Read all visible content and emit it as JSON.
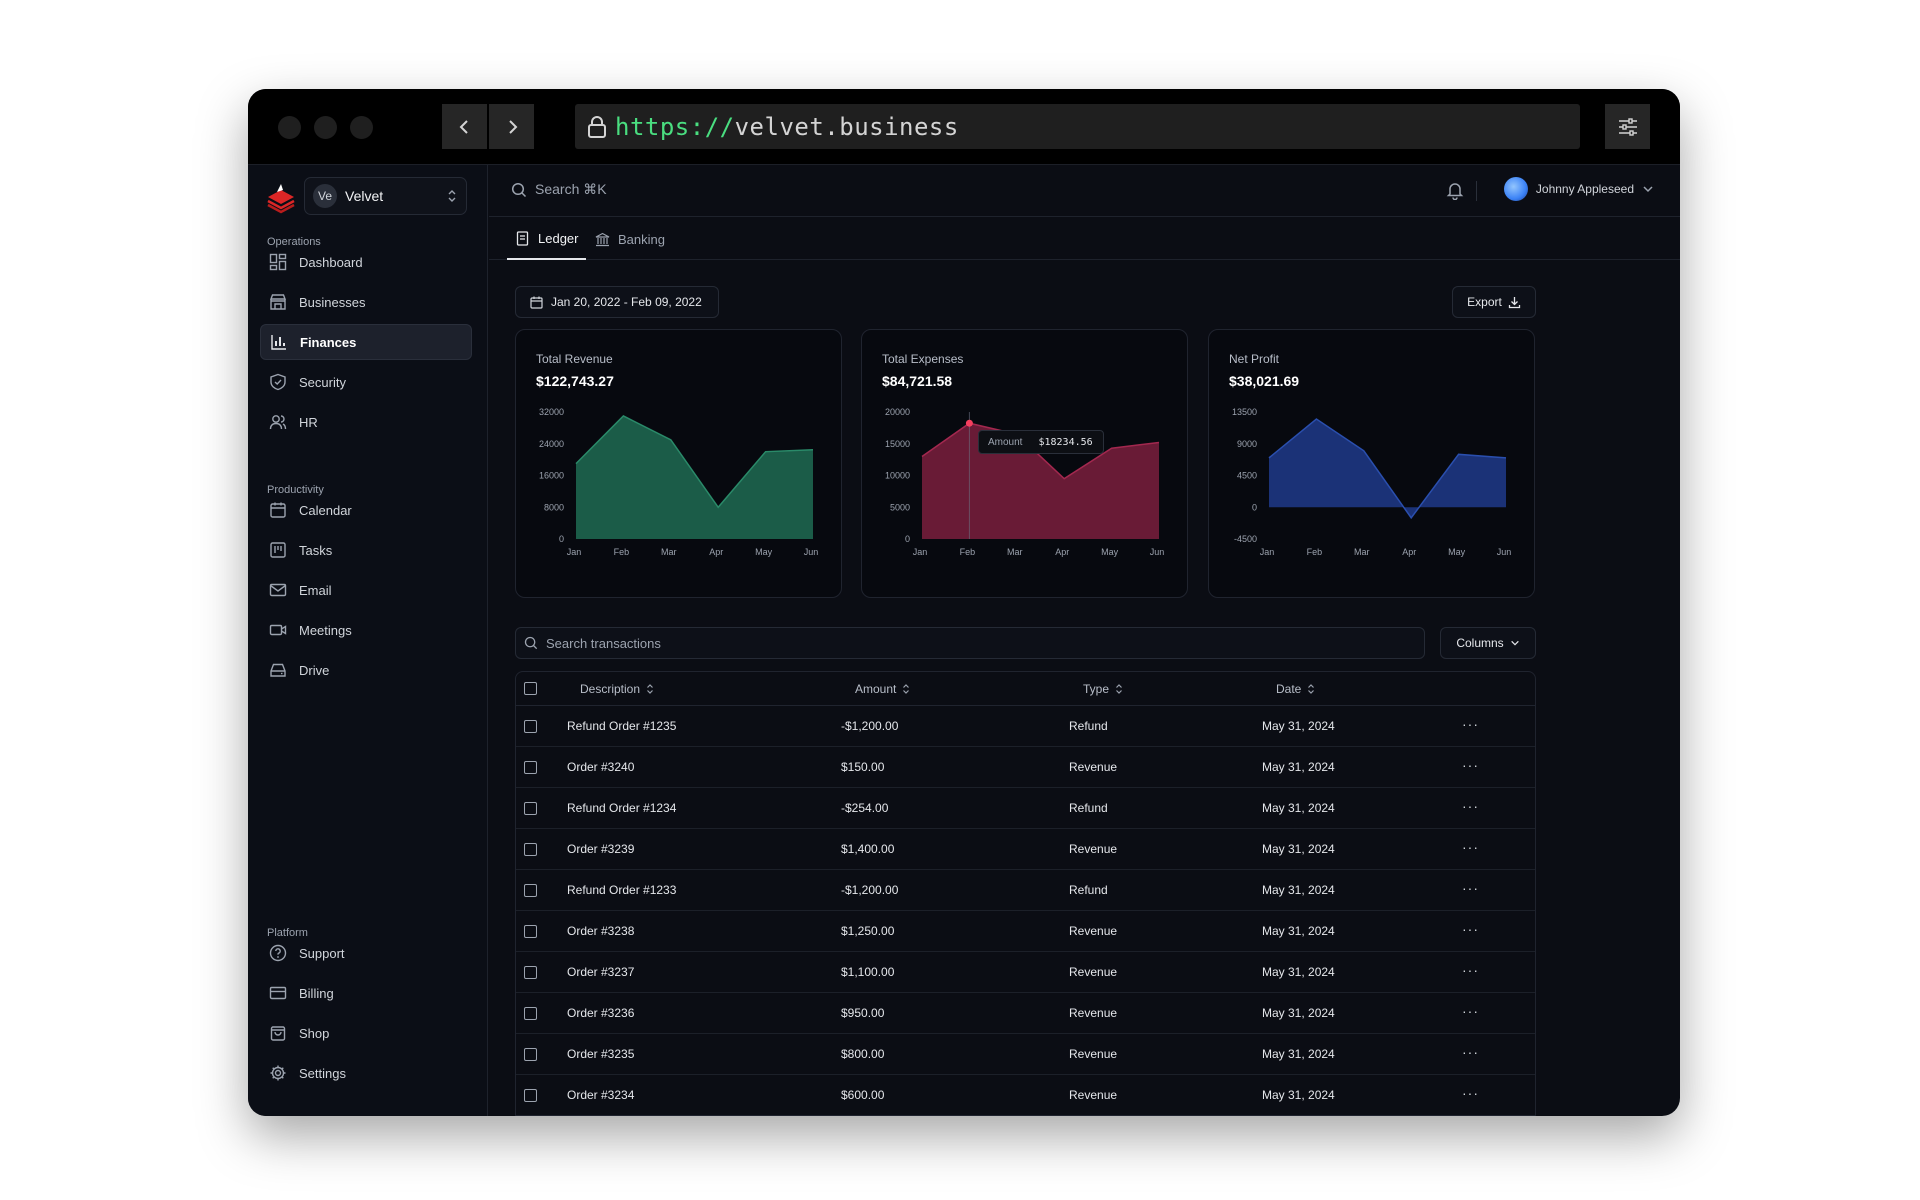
{
  "browser": {
    "url_scheme": "https://",
    "url_host": "velvet.business"
  },
  "sidebar": {
    "workspace_badge": "Ve",
    "workspace_name": "Velvet",
    "sections": [
      {
        "label": "Operations",
        "items": [
          {
            "label": "Dashboard",
            "icon": "dashboard-icon"
          },
          {
            "label": "Businesses",
            "icon": "store-icon"
          },
          {
            "label": "Finances",
            "icon": "bar-chart-icon",
            "active": true
          },
          {
            "label": "Security",
            "icon": "shield-icon"
          },
          {
            "label": "HR",
            "icon": "users-icon"
          }
        ]
      },
      {
        "label": "Productivity",
        "items": [
          {
            "label": "Calendar",
            "icon": "calendar-icon"
          },
          {
            "label": "Tasks",
            "icon": "kanban-icon"
          },
          {
            "label": "Email",
            "icon": "mail-icon"
          },
          {
            "label": "Meetings",
            "icon": "video-icon"
          },
          {
            "label": "Drive",
            "icon": "drive-icon"
          }
        ]
      },
      {
        "label": "Platform",
        "items": [
          {
            "label": "Support",
            "icon": "help-icon"
          },
          {
            "label": "Billing",
            "icon": "credit-card-icon"
          },
          {
            "label": "Shop",
            "icon": "shopping-bag-icon"
          },
          {
            "label": "Settings",
            "icon": "gear-icon"
          }
        ]
      }
    ]
  },
  "topbar": {
    "search_placeholder": "Search ⌘K",
    "user_name": "Johnny Appleseed"
  },
  "tabs": [
    {
      "label": "Ledger",
      "active": true
    },
    {
      "label": "Banking",
      "active": false
    }
  ],
  "toolbar": {
    "date_range": "Jan 20, 2022 - Feb 09, 2022",
    "export_label": "Export"
  },
  "cards": [
    {
      "title": "Total Revenue",
      "value": "$122,743.27",
      "color": "#1f6b52",
      "stroke": "#2a8a69"
    },
    {
      "title": "Total Expenses",
      "value": "$84,721.58",
      "color": "#7a1f3d",
      "stroke": "#a3284f"
    },
    {
      "title": "Net Profit",
      "value": "$38,021.69",
      "color": "#1e3a8a",
      "stroke": "#2a4fae"
    }
  ],
  "chart_data": [
    {
      "type": "area",
      "title": "Total Revenue",
      "categories": [
        "Jan",
        "Feb",
        "Mar",
        "Apr",
        "May",
        "Jun"
      ],
      "values": [
        19000,
        31000,
        25000,
        8000,
        22000,
        22500
      ],
      "yticks": [
        "0",
        "8000",
        "16000",
        "24000",
        "32000"
      ],
      "ylim": [
        0,
        32000
      ]
    },
    {
      "type": "area",
      "title": "Total Expenses",
      "categories": [
        "Jan",
        "Feb",
        "Mar",
        "Apr",
        "May",
        "Jun"
      ],
      "values": [
        13000,
        18234.56,
        16500,
        9500,
        14300,
        15200
      ],
      "yticks": [
        "0",
        "5000",
        "10000",
        "15000",
        "20000"
      ],
      "ylim": [
        0,
        20000
      ],
      "tooltip": {
        "label": "Amount",
        "value": "$18234.56",
        "index": 1
      }
    },
    {
      "type": "area",
      "title": "Net Profit",
      "categories": [
        "Jan",
        "Feb",
        "Mar",
        "Apr",
        "May",
        "Jun"
      ],
      "values": [
        7000,
        12500,
        8000,
        -1500,
        7500,
        7000
      ],
      "yticks": [
        "-4500",
        "0",
        "4500",
        "9000",
        "13500"
      ],
      "ylim": [
        -4500,
        13500
      ]
    }
  ],
  "transactions": {
    "search_placeholder": "Search transactions",
    "columns_label": "Columns",
    "headers": [
      "Description",
      "Amount",
      "Type",
      "Date"
    ],
    "rows": [
      {
        "description": "Refund Order #1235",
        "amount": "-$1,200.00",
        "type": "Refund",
        "date": "May 31, 2024"
      },
      {
        "description": "Order #3240",
        "amount": "$150.00",
        "type": "Revenue",
        "date": "May 31, 2024"
      },
      {
        "description": "Refund Order #1234",
        "amount": "-$254.00",
        "type": "Refund",
        "date": "May 31, 2024"
      },
      {
        "description": "Order #3239",
        "amount": "$1,400.00",
        "type": "Revenue",
        "date": "May 31, 2024"
      },
      {
        "description": "Refund Order #1233",
        "amount": "-$1,200.00",
        "type": "Refund",
        "date": "May 31, 2024"
      },
      {
        "description": "Order #3238",
        "amount": "$1,250.00",
        "type": "Revenue",
        "date": "May 31, 2024"
      },
      {
        "description": "Order #3237",
        "amount": "$1,100.00",
        "type": "Revenue",
        "date": "May 31, 2024"
      },
      {
        "description": "Order #3236",
        "amount": "$950.00",
        "type": "Revenue",
        "date": "May 31, 2024"
      },
      {
        "description": "Order #3235",
        "amount": "$800.00",
        "type": "Revenue",
        "date": "May 31, 2024"
      },
      {
        "description": "Order #3234",
        "amount": "$600.00",
        "type": "Revenue",
        "date": "May 31, 2024"
      }
    ]
  }
}
